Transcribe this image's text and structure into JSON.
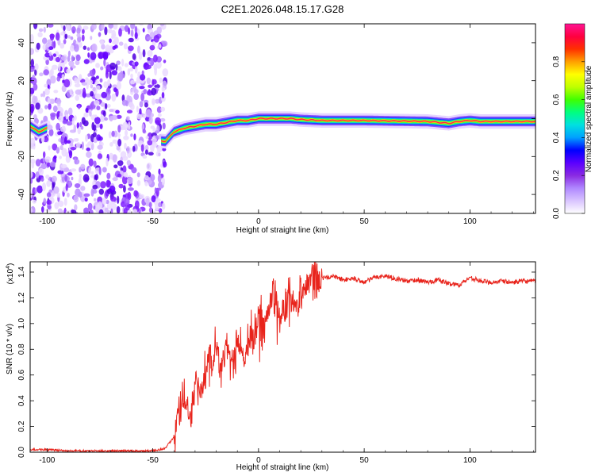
{
  "chart_data": [
    {
      "type": "heatmap",
      "title": "C2E1.2026.048.15.17.G28",
      "xlabel": "Height of straight line (km)",
      "ylabel": "Frequency (Hz)",
      "xlim": [
        -108,
        131
      ],
      "ylim": [
        -50,
        50
      ],
      "xticks": [
        -100,
        -50,
        0,
        50,
        100
      ],
      "yticks": [
        -40,
        -20,
        0,
        20,
        40
      ],
      "colorbar": {
        "label": "Normalized spectral amplitude",
        "range": [
          0,
          1
        ],
        "ticks": [
          "0.0",
          "0.2",
          "0.4",
          "0.6",
          "0.8"
        ],
        "colors": [
          "#ffffff",
          "#d9c4ff",
          "#b088ff",
          "#8a2be2",
          "#5a00ff",
          "#0000ff",
          "#00a0ff",
          "#00e0e0",
          "#00ff80",
          "#40ff00",
          "#c0ff00",
          "#ffff00",
          "#ffa000",
          "#ff3000",
          "#ff0040",
          "#ff1493"
        ]
      },
      "features": {
        "noise_region_km": [
          -108,
          -44
        ],
        "signal_track": {
          "heights_km": [
            -108,
            -104,
            -100,
            -44,
            -40,
            -35,
            -30,
            -25,
            -20,
            -15,
            -10,
            -5,
            0,
            5,
            10,
            15,
            20,
            30,
            50,
            80,
            90,
            95,
            100,
            105,
            131
          ],
          "frequency_hz": [
            -4,
            -7,
            -5,
            -12,
            -7,
            -5,
            -4,
            -3,
            -3,
            -2,
            -1,
            -1,
            0,
            0,
            0,
            0,
            -0.5,
            -1,
            -1,
            -1.5,
            -2.5,
            -1.5,
            -1,
            -1.5,
            -1.5
          ]
        }
      }
    },
    {
      "type": "line",
      "xlabel": "Height of straight line (km)",
      "ylabel": "SNR (10 * v/v)",
      "yscale_label": "(x10",
      "yscale_exp": "4",
      "xlim": [
        -108,
        131
      ],
      "ylim": [
        0,
        1.48
      ],
      "xticks": [
        -100,
        -50,
        0,
        50,
        100
      ],
      "yticks": [
        "0.0",
        "0.2",
        "0.4",
        "0.6",
        "0.8",
        "1.0",
        "1.2",
        "1.4"
      ],
      "color": "#e8241c",
      "series": [
        {
          "name": "SNR",
          "x": [
            -108,
            -100,
            -90,
            -80,
            -70,
            -60,
            -50,
            -44,
            -40,
            -38,
            -35,
            -32,
            -30,
            -27,
            -25,
            -22,
            -20,
            -18,
            -15,
            -12,
            -10,
            -7,
            -5,
            -2,
            0,
            2,
            5,
            7,
            10,
            13,
            15,
            18,
            20,
            25,
            30,
            35,
            40,
            45,
            50,
            55,
            60,
            65,
            70,
            75,
            80,
            85,
            90,
            95,
            100,
            105,
            110,
            115,
            120,
            125,
            131
          ],
          "y": [
            0.02,
            0.02,
            0.01,
            0.01,
            0.01,
            0.01,
            0.01,
            0.03,
            0.12,
            0.3,
            0.42,
            0.28,
            0.5,
            0.45,
            0.6,
            0.72,
            0.8,
            0.65,
            0.78,
            0.7,
            0.82,
            0.72,
            0.92,
            0.85,
            1.05,
            0.95,
            1.1,
            1.25,
            1.05,
            1.15,
            1.25,
            1.1,
            1.28,
            1.32,
            1.35,
            1.37,
            1.34,
            1.35,
            1.32,
            1.36,
            1.37,
            1.35,
            1.33,
            1.34,
            1.32,
            1.34,
            1.31,
            1.3,
            1.36,
            1.33,
            1.32,
            1.33,
            1.32,
            1.33,
            1.33
          ]
        }
      ]
    }
  ]
}
